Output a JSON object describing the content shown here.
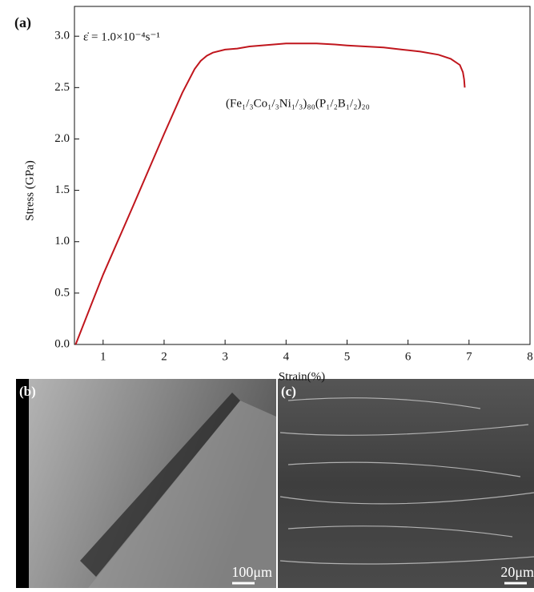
{
  "chart_data": {
    "type": "line",
    "panel_label": "(a)",
    "x_label": "Strain(%)",
    "y_label": "Stress (GPa)",
    "annotations": [
      "ε̇ = 1.0×10⁻⁴s⁻¹",
      "(Fe₁/₃Co₁/₃Ni₁/₃)₈₀(P₁/₂B₁/₂)₂₀"
    ],
    "xlim": [
      0.53,
      8
    ],
    "ylim": [
      0,
      3.29
    ],
    "xticks": [
      1,
      2,
      3,
      4,
      5,
      6,
      7,
      8
    ],
    "yticks": [
      {
        "value": 0,
        "label": "0.0"
      },
      0.5,
      {
        "value": 1,
        "label": "1.0"
      },
      1.5,
      {
        "value": 2,
        "label": "2.0"
      },
      2.5,
      {
        "value": 3,
        "label": "3.0"
      }
    ],
    "series": [
      {
        "color": "#c0161d",
        "x": [
          0.55,
          0.8,
          1.0,
          1.5,
          2.0,
          2.3,
          2.5,
          2.6,
          2.7,
          2.8,
          3.0,
          3.2,
          3.4,
          3.6,
          3.8,
          4.0,
          4.2,
          4.5,
          4.8,
          5.0,
          5.3,
          5.6,
          5.9,
          6.2,
          6.5,
          6.7,
          6.85,
          6.9,
          6.92,
          6.93
        ],
        "values": [
          0.0,
          0.38,
          0.68,
          1.36,
          2.05,
          2.45,
          2.68,
          2.76,
          2.81,
          2.84,
          2.87,
          2.88,
          2.9,
          2.91,
          2.92,
          2.93,
          2.93,
          2.93,
          2.92,
          2.91,
          2.9,
          2.89,
          2.87,
          2.85,
          2.82,
          2.78,
          2.72,
          2.65,
          2.58,
          2.5
        ]
      }
    ]
  },
  "images": [
    {
      "label": "(b)",
      "scale_bar": "100μm"
    },
    {
      "label": "(c)",
      "scale_bar": "20μm"
    }
  ]
}
